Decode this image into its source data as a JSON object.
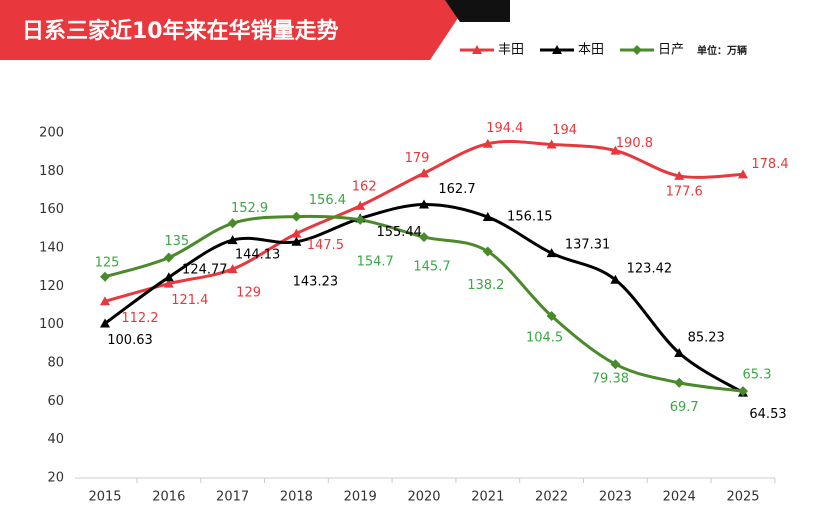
{
  "chart_data": {
    "type": "line",
    "title": "日系三家近10年来在华销量走势",
    "unit": "单位：万辆",
    "categories": [
      "2015",
      "2016",
      "2017",
      "2018",
      "2019",
      "2020",
      "2021",
      "2022",
      "2023",
      "2024",
      "2025"
    ],
    "series": [
      {
        "name": "丰田",
        "color": "#e8383d",
        "marker": "triangle",
        "values": [
          112.2,
          121.4,
          129,
          147.5,
          162,
          179,
          194.4,
          194,
          190.8,
          177.6,
          178.4
        ]
      },
      {
        "name": "本田",
        "color": "#000000",
        "marker": "triangle",
        "values": [
          100.63,
          124.77,
          144.13,
          143.23,
          155.44,
          162.7,
          156.15,
          137.31,
          123.42,
          85.23,
          64.53
        ]
      },
      {
        "name": "日产",
        "color": "#4a8a2a",
        "marker": "diamond",
        "values": [
          125,
          135,
          152.9,
          156.4,
          154.7,
          145.7,
          138.2,
          104.5,
          79.38,
          69.7,
          65.3
        ]
      }
    ],
    "ylim": [
      20,
      200
    ],
    "yticks": [
      20,
      40,
      60,
      80,
      100,
      120,
      140,
      160,
      180,
      200
    ]
  }
}
